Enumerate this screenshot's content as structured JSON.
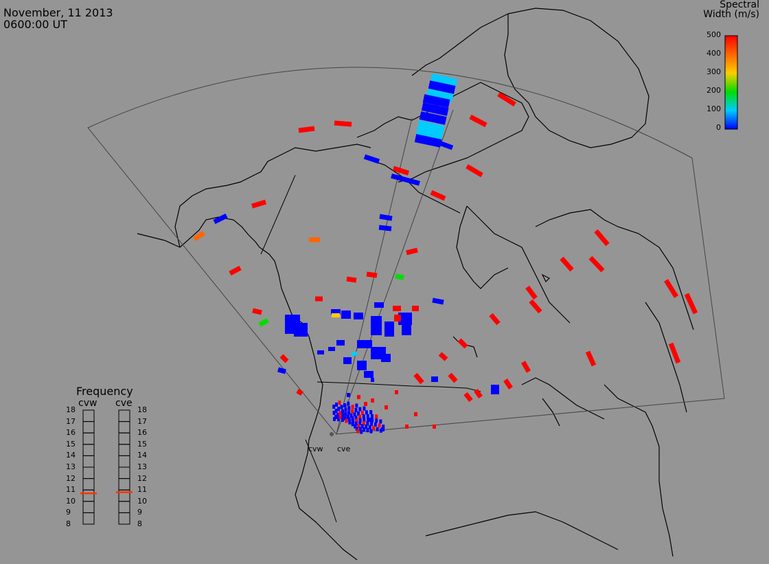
{
  "header": {
    "date": "November, 11 2013",
    "time": "0600:00 UT"
  },
  "colorbar": {
    "title_line1": "Spectral",
    "title_line2": "Width (m/s)",
    "ticks": [
      "500",
      "400",
      "300",
      "200",
      "100",
      "0"
    ],
    "colors": [
      "#ff0000",
      "#ff6600",
      "#ffcc00",
      "#00dd00",
      "#00ccff",
      "#0000ff"
    ]
  },
  "frequency": {
    "title": "Frequency",
    "radars": [
      {
        "name": "cvw",
        "value": 10.7
      },
      {
        "name": "cve",
        "value": 10.8
      }
    ],
    "scale": [
      "18",
      "17",
      "16",
      "15",
      "14",
      "13",
      "12",
      "11",
      "10",
      "9",
      "8"
    ],
    "indicator_color": "#ff3300"
  },
  "sites": [
    {
      "name": "cvw"
    },
    {
      "name": "cve"
    }
  ],
  "map": {
    "background": "#959595",
    "land_outline": "#000000",
    "fov_outline": "#444444"
  }
}
